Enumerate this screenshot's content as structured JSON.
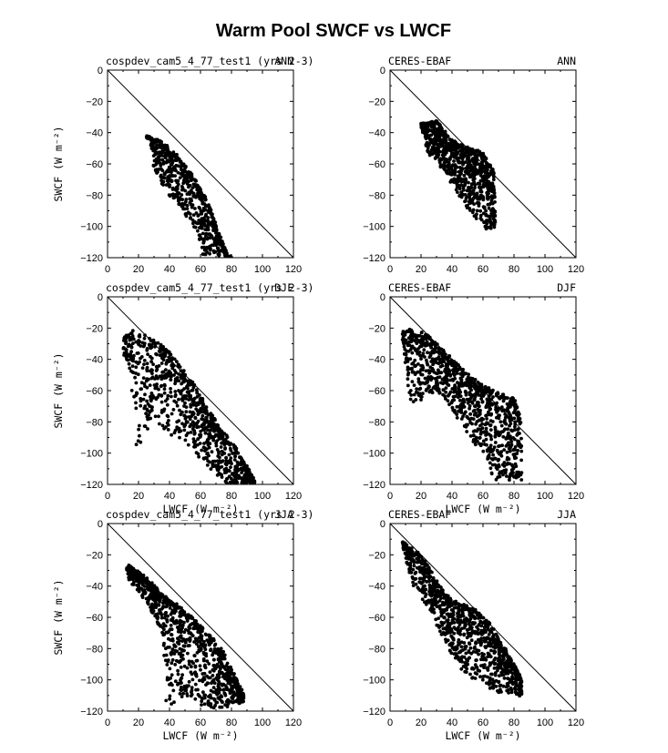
{
  "figure": {
    "title": "Warm Pool SWCF vs LWCF"
  },
  "chart_data": [
    {
      "type": "scatter",
      "left_label": "cospdev_cam5_4_77_test1 (yrs 2-3)",
      "right_label": "ANN",
      "xlabel": "",
      "ylabel": "SWCF (W m⁻²)",
      "xlim": [
        0,
        120
      ],
      "ylim": [
        -120,
        0
      ],
      "xticks": [
        0,
        20,
        40,
        60,
        80,
        100,
        120
      ],
      "yticks": [
        0,
        -20,
        -40,
        -60,
        -80,
        -100,
        -120
      ],
      "reference_line": "y = -x",
      "point_cloud": {
        "x_range": [
          25,
          80
        ],
        "upper_edge": [
          [
            27,
            -43
          ],
          [
            35,
            -46
          ],
          [
            45,
            -55
          ],
          [
            55,
            -68
          ],
          [
            65,
            -85
          ],
          [
            72,
            -105
          ],
          [
            78,
            -120
          ]
        ],
        "lower_edge": [
          [
            27,
            -43
          ],
          [
            30,
            -65
          ],
          [
            40,
            -80
          ],
          [
            50,
            -92
          ],
          [
            58,
            -105
          ],
          [
            62,
            -120
          ]
        ],
        "count": 700
      }
    },
    {
      "type": "scatter",
      "left_label": "CERES-EBAF",
      "right_label": "ANN",
      "xlabel": "",
      "ylabel": "",
      "xlim": [
        0,
        120
      ],
      "ylim": [
        -120,
        0
      ],
      "xticks": [
        0,
        20,
        40,
        60,
        80,
        100,
        120
      ],
      "yticks": [
        0,
        -20,
        -40,
        -60,
        -80,
        -100,
        -120
      ],
      "reference_line": "y = -x",
      "point_cloud": {
        "x_range": [
          20,
          68
        ],
        "upper_edge": [
          [
            20,
            -35
          ],
          [
            30,
            -33
          ],
          [
            40,
            -45
          ],
          [
            50,
            -50
          ],
          [
            60,
            -53
          ],
          [
            67,
            -65
          ],
          [
            68,
            -95
          ]
        ],
        "lower_edge": [
          [
            20,
            -35
          ],
          [
            25,
            -55
          ],
          [
            35,
            -65
          ],
          [
            45,
            -82
          ],
          [
            55,
            -95
          ],
          [
            63,
            -103
          ]
        ],
        "count": 850
      }
    },
    {
      "type": "scatter",
      "left_label": "cospdev_cam5_4_77_test1 (yrs 2-3)",
      "right_label": "DJF",
      "xlabel": "LWCF (W m⁻²)",
      "ylabel": "SWCF (W m⁻²)",
      "xlim": [
        0,
        120
      ],
      "ylim": [
        -120,
        0
      ],
      "xticks": [
        0,
        20,
        40,
        60,
        80,
        100,
        120
      ],
      "yticks": [
        0,
        -20,
        -40,
        -60,
        -80,
        -100,
        -120
      ],
      "reference_line": "y = -x",
      "point_cloud": {
        "x_range": [
          10,
          95
        ],
        "upper_edge": [
          [
            10,
            -28
          ],
          [
            15,
            -22
          ],
          [
            25,
            -25
          ],
          [
            40,
            -35
          ],
          [
            55,
            -55
          ],
          [
            70,
            -80
          ],
          [
            85,
            -100
          ],
          [
            95,
            -118
          ]
        ],
        "lower_edge": [
          [
            10,
            -35
          ],
          [
            15,
            -50
          ],
          [
            18,
            -98
          ],
          [
            30,
            -80
          ],
          [
            45,
            -90
          ],
          [
            60,
            -103
          ],
          [
            75,
            -120
          ]
        ],
        "count": 900
      }
    },
    {
      "type": "scatter",
      "left_label": "CERES-EBAF",
      "right_label": "DJF",
      "xlabel": "LWCF (W m⁻²)",
      "ylabel": "",
      "xlim": [
        0,
        120
      ],
      "ylim": [
        -120,
        0
      ],
      "xticks": [
        0,
        20,
        40,
        60,
        80,
        100,
        120
      ],
      "yticks": [
        0,
        -20,
        -40,
        -60,
        -80,
        -100,
        -120
      ],
      "reference_line": "y = -x",
      "point_cloud": {
        "x_range": [
          8,
          85
        ],
        "upper_edge": [
          [
            8,
            -22
          ],
          [
            20,
            -21
          ],
          [
            35,
            -35
          ],
          [
            50,
            -50
          ],
          [
            65,
            -60
          ],
          [
            80,
            -65
          ],
          [
            85,
            -80
          ]
        ],
        "lower_edge": [
          [
            8,
            -30
          ],
          [
            12,
            -62
          ],
          [
            15,
            -68
          ],
          [
            30,
            -60
          ],
          [
            45,
            -80
          ],
          [
            55,
            -95
          ],
          [
            68,
            -118
          ]
        ],
        "count": 1000
      }
    },
    {
      "type": "scatter",
      "left_label": "cospdev_cam5_4_77_test1 (yrs 2-3)",
      "right_label": "JJA",
      "xlabel": "LWCF (W m⁻²)",
      "ylabel": "SWCF (W m⁻²)",
      "xlim": [
        0,
        120
      ],
      "ylim": [
        -120,
        0
      ],
      "xticks": [
        0,
        20,
        40,
        60,
        80,
        100,
        120
      ],
      "yticks": [
        0,
        -20,
        -40,
        -60,
        -80,
        -100,
        -120
      ],
      "reference_line": "y = -x",
      "point_cloud": {
        "x_range": [
          12,
          88
        ],
        "upper_edge": [
          [
            12,
            -26
          ],
          [
            25,
            -35
          ],
          [
            40,
            -50
          ],
          [
            50,
            -55
          ],
          [
            60,
            -65
          ],
          [
            75,
            -82
          ],
          [
            88,
            -110
          ]
        ],
        "lower_edge": [
          [
            12,
            -33
          ],
          [
            25,
            -50
          ],
          [
            35,
            -70
          ],
          [
            38,
            -118
          ],
          [
            50,
            -110
          ],
          [
            65,
            -120
          ],
          [
            85,
            -115
          ]
        ],
        "count": 950
      }
    },
    {
      "type": "scatter",
      "left_label": "CERES-EBAF",
      "right_label": "JJA",
      "xlabel": "LWCF (W m⁻²)",
      "ylabel": "",
      "xlim": [
        0,
        120
      ],
      "ylim": [
        -120,
        0
      ],
      "xticks": [
        0,
        20,
        40,
        60,
        80,
        100,
        120
      ],
      "yticks": [
        0,
        -20,
        -40,
        -60,
        -80,
        -100,
        -120
      ],
      "reference_line": "y = -x",
      "point_cloud": {
        "x_range": [
          8,
          85
        ],
        "upper_edge": [
          [
            8,
            -12
          ],
          [
            20,
            -20
          ],
          [
            35,
            -45
          ],
          [
            45,
            -52
          ],
          [
            55,
            -55
          ],
          [
            65,
            -65
          ],
          [
            80,
            -90
          ],
          [
            85,
            -100
          ]
        ],
        "lower_edge": [
          [
            8,
            -15
          ],
          [
            15,
            -40
          ],
          [
            25,
            -55
          ],
          [
            35,
            -75
          ],
          [
            45,
            -95
          ],
          [
            55,
            -100
          ],
          [
            70,
            -108
          ],
          [
            85,
            -110
          ]
        ],
        "count": 1000
      }
    }
  ]
}
